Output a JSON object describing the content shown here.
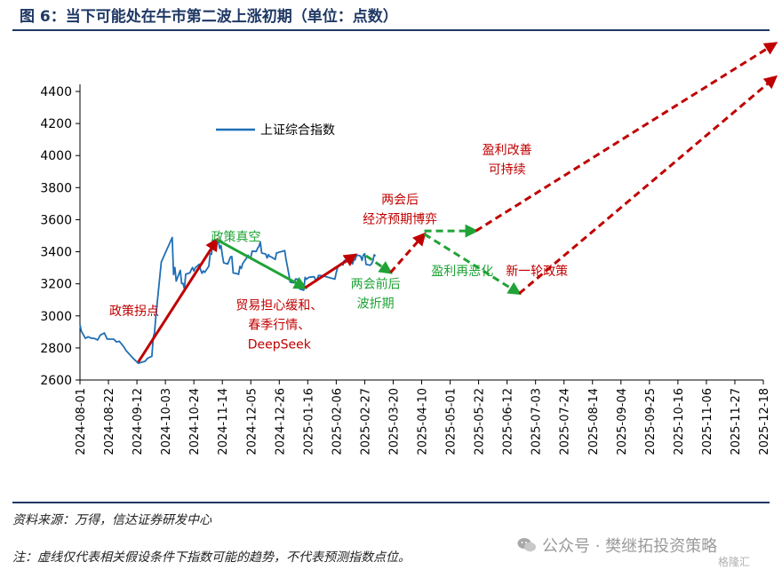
{
  "figure": {
    "title": "图 6：当下可能处在牛市第二波上涨初期（单位：点数）",
    "source": "资料来源：万得，信达证券研发中心",
    "note": "注：虚线仅代表相关假设条件下指数可能的趋势，不代表预测指数点位。",
    "watermark": "公众号 · 樊继拓投资策略",
    "watermark_icon": "wechat-icon",
    "badge": "格隆汇"
  },
  "colors": {
    "index_line": "#1f6fb5",
    "up_arrow": "#c00000",
    "down_arrow": "#1fa336",
    "red_text": "#c00000",
    "green_text": "#1fa336",
    "axis": "#000000",
    "header_rule": "#1f3864"
  },
  "chart_data": {
    "type": "line",
    "ylim": [
      2600,
      4400
    ],
    "yticks": [
      2600,
      2800,
      3000,
      3200,
      3400,
      3600,
      3800,
      4000,
      4200,
      4400
    ],
    "xlim": [
      "2024-08-01",
      "2025-12-18"
    ],
    "xtick_labels": [
      "2024-08-01",
      "2024-08-22",
      "2024-09-12",
      "2024-10-03",
      "2024-10-24",
      "2024-11-14",
      "2024-12-05",
      "2024-12-26",
      "2025-01-16",
      "2025-02-06",
      "2025-02-27",
      "2025-03-20",
      "2025-04-10",
      "2025-05-01",
      "2025-05-22",
      "2025-06-12",
      "2025-07-03",
      "2025-07-24",
      "2025-08-14",
      "2025-09-04",
      "2025-09-25",
      "2025-10-16",
      "2025-11-06",
      "2025-11-27",
      "2025-12-18"
    ],
    "grid": false,
    "legend_position": "top-left",
    "series": [
      {
        "name": "上证综合指数",
        "style": "solid",
        "points": [
          [
            "2024-08-01",
            2945
          ],
          [
            "2024-08-02",
            2905
          ],
          [
            "2024-08-05",
            2860
          ],
          [
            "2024-08-07",
            2870
          ],
          [
            "2024-08-09",
            2862
          ],
          [
            "2024-08-12",
            2858
          ],
          [
            "2024-08-14",
            2850
          ],
          [
            "2024-08-16",
            2880
          ],
          [
            "2024-08-19",
            2893
          ],
          [
            "2024-08-21",
            2856
          ],
          [
            "2024-08-23",
            2855
          ],
          [
            "2024-08-26",
            2855
          ],
          [
            "2024-08-28",
            2837
          ],
          [
            "2024-08-30",
            2842
          ],
          [
            "2024-09-02",
            2811
          ],
          [
            "2024-09-04",
            2784
          ],
          [
            "2024-09-06",
            2765
          ],
          [
            "2024-09-09",
            2737
          ],
          [
            "2024-09-11",
            2721
          ],
          [
            "2024-09-13",
            2704
          ],
          [
            "2024-09-18",
            2717
          ],
          [
            "2024-09-20",
            2736
          ],
          [
            "2024-09-23",
            2748
          ],
          [
            "2024-09-24",
            2863
          ],
          [
            "2024-09-25",
            2897
          ],
          [
            "2024-09-26",
            3000
          ],
          [
            "2024-09-27",
            3087
          ],
          [
            "2024-09-30",
            3336
          ],
          [
            "2024-10-08",
            3489
          ],
          [
            "2024-10-09",
            3258
          ],
          [
            "2024-10-10",
            3301
          ],
          [
            "2024-10-11",
            3217
          ],
          [
            "2024-10-14",
            3284
          ],
          [
            "2024-10-15",
            3202
          ],
          [
            "2024-10-16",
            3202
          ],
          [
            "2024-10-17",
            3169
          ],
          [
            "2024-10-18",
            3261
          ],
          [
            "2024-10-21",
            3268
          ],
          [
            "2024-10-22",
            3286
          ],
          [
            "2024-10-23",
            3302
          ],
          [
            "2024-10-24",
            3280
          ],
          [
            "2024-10-25",
            3300
          ],
          [
            "2024-10-28",
            3322
          ],
          [
            "2024-10-29",
            3286
          ],
          [
            "2024-10-30",
            3266
          ],
          [
            "2024-10-31",
            3280
          ],
          [
            "2024-11-01",
            3272
          ],
          [
            "2024-11-04",
            3310
          ],
          [
            "2024-11-05",
            3387
          ],
          [
            "2024-11-06",
            3384
          ],
          [
            "2024-11-07",
            3471
          ],
          [
            "2024-11-08",
            3452
          ],
          [
            "2024-11-11",
            3470
          ],
          [
            "2024-11-12",
            3421
          ],
          [
            "2024-11-13",
            3439
          ],
          [
            "2024-11-14",
            3379
          ],
          [
            "2024-11-15",
            3331
          ],
          [
            "2024-11-18",
            3324
          ],
          [
            "2024-11-19",
            3346
          ],
          [
            "2024-11-20",
            3368
          ],
          [
            "2024-11-21",
            3370
          ],
          [
            "2024-11-22",
            3268
          ],
          [
            "2024-11-25",
            3263
          ],
          [
            "2024-11-26",
            3259
          ],
          [
            "2024-11-27",
            3309
          ],
          [
            "2024-11-28",
            3296
          ],
          [
            "2024-11-29",
            3326
          ],
          [
            "2024-12-02",
            3363
          ],
          [
            "2024-12-03",
            3378
          ],
          [
            "2024-12-04",
            3364
          ],
          [
            "2024-12-05",
            3368
          ],
          [
            "2024-12-06",
            3404
          ],
          [
            "2024-12-09",
            3402
          ],
          [
            "2024-12-10",
            3422
          ],
          [
            "2024-12-11",
            3433
          ],
          [
            "2024-12-12",
            3461
          ],
          [
            "2024-12-13",
            3392
          ],
          [
            "2024-12-16",
            3386
          ],
          [
            "2024-12-17",
            3361
          ],
          [
            "2024-12-18",
            3382
          ],
          [
            "2024-12-19",
            3370
          ],
          [
            "2024-12-20",
            3368
          ],
          [
            "2024-12-23",
            3352
          ],
          [
            "2024-12-24",
            3393
          ],
          [
            "2024-12-25",
            3394
          ],
          [
            "2024-12-26",
            3398
          ],
          [
            "2024-12-27",
            3400
          ],
          [
            "2024-12-30",
            3407
          ],
          [
            "2024-12-31",
            3352
          ],
          [
            "2025-01-02",
            3262
          ],
          [
            "2025-01-03",
            3211
          ],
          [
            "2025-01-06",
            3206
          ],
          [
            "2025-01-07",
            3230
          ],
          [
            "2025-01-08",
            3230
          ],
          [
            "2025-01-09",
            3211
          ],
          [
            "2025-01-10",
            3168
          ],
          [
            "2025-01-13",
            3160
          ],
          [
            "2025-01-14",
            3240
          ],
          [
            "2025-01-15",
            3228
          ],
          [
            "2025-01-16",
            3236
          ],
          [
            "2025-01-17",
            3241
          ],
          [
            "2025-01-20",
            3244
          ],
          [
            "2025-01-21",
            3242
          ],
          [
            "2025-01-22",
            3213
          ],
          [
            "2025-01-23",
            3231
          ],
          [
            "2025-01-24",
            3253
          ],
          [
            "2025-01-27",
            3250
          ],
          [
            "2025-02-05",
            3229
          ],
          [
            "2025-02-06",
            3270
          ],
          [
            "2025-02-07",
            3303
          ],
          [
            "2025-02-10",
            3322
          ],
          [
            "2025-02-11",
            3318
          ],
          [
            "2025-02-12",
            3346
          ],
          [
            "2025-02-13",
            3333
          ],
          [
            "2025-02-14",
            3346
          ],
          [
            "2025-02-17",
            3355
          ],
          [
            "2025-02-18",
            3324
          ],
          [
            "2025-02-19",
            3351
          ],
          [
            "2025-02-20",
            3350
          ],
          [
            "2025-02-21",
            3379
          ],
          [
            "2025-02-24",
            3373
          ],
          [
            "2025-02-25",
            3346
          ],
          [
            "2025-02-26",
            3380
          ],
          [
            "2025-02-27",
            3388
          ],
          [
            "2025-02-28",
            3321
          ],
          [
            "2025-03-03",
            3316
          ],
          [
            "2025-03-04",
            3324
          ],
          [
            "2025-03-05",
            3342
          ],
          [
            "2025-03-06",
            3381
          ],
          [
            "2025-03-07",
            3373
          ]
        ]
      }
    ],
    "arrows": [
      {
        "style": "solid",
        "color": "up",
        "from": [
          "2024-09-13",
          2712
        ],
        "to": [
          "2024-11-10",
          3475
        ]
      },
      {
        "style": "solid",
        "color": "down",
        "from": [
          "2024-11-10",
          3475
        ],
        "to": [
          "2025-01-14",
          3175
        ]
      },
      {
        "style": "solid",
        "color": "up",
        "from": [
          "2025-01-14",
          3175
        ],
        "to": [
          "2025-02-20",
          3380
        ]
      },
      {
        "style": "dashed",
        "color": "down",
        "from": [
          "2025-02-28",
          3375
        ],
        "to": [
          "2025-03-18",
          3270
        ]
      },
      {
        "style": "dashed",
        "color": "up",
        "from": [
          "2025-03-18",
          3270
        ],
        "to": [
          "2025-04-12",
          3510
        ]
      },
      {
        "style": "dashed",
        "color": "down",
        "from": [
          "2025-04-12",
          3530
        ],
        "to": [
          "2025-05-20",
          3530
        ]
      },
      {
        "style": "dashed",
        "color": "up",
        "from": [
          "2025-05-20",
          3530
        ],
        "to": [
          "2025-12-27",
          4700
        ]
      },
      {
        "style": "dashed",
        "color": "down",
        "from": [
          "2025-04-12",
          3510
        ],
        "to": [
          "2025-06-21",
          3140
        ]
      },
      {
        "style": "dashed",
        "color": "up",
        "from": [
          "2025-06-21",
          3140
        ],
        "to": [
          "2025-12-27",
          4490
        ]
      }
    ],
    "annotations": [
      {
        "text": "政策拐点",
        "color": "red",
        "at": [
          "2024-09-10",
          3005
        ]
      },
      {
        "text": "政策真空",
        "color": "green",
        "at": [
          "2024-11-24",
          3468
        ]
      },
      {
        "lines": [
          "贸易担心缓和、",
          "春季行情、",
          "DeepSeek"
        ],
        "color": "red",
        "at": [
          "2024-12-26",
          3040
        ]
      },
      {
        "lines": [
          "两会前后",
          "波折期"
        ],
        "color": "green",
        "at": [
          "2025-03-07",
          3174
        ]
      },
      {
        "lines": [
          "两会后",
          "经济预期博弈"
        ],
        "color": "red",
        "at": [
          "2025-03-25",
          3700
        ]
      },
      {
        "text": "盈利再恶化",
        "color": "green",
        "at": [
          "2025-05-10",
          3254
        ]
      },
      {
        "text": "新一轮政策",
        "color": "red",
        "at": [
          "2025-07-04",
          3254
        ]
      },
      {
        "lines": [
          "盈利改善",
          "可持续"
        ],
        "color": "red",
        "at": [
          "2025-06-12",
          4010
        ]
      }
    ]
  }
}
